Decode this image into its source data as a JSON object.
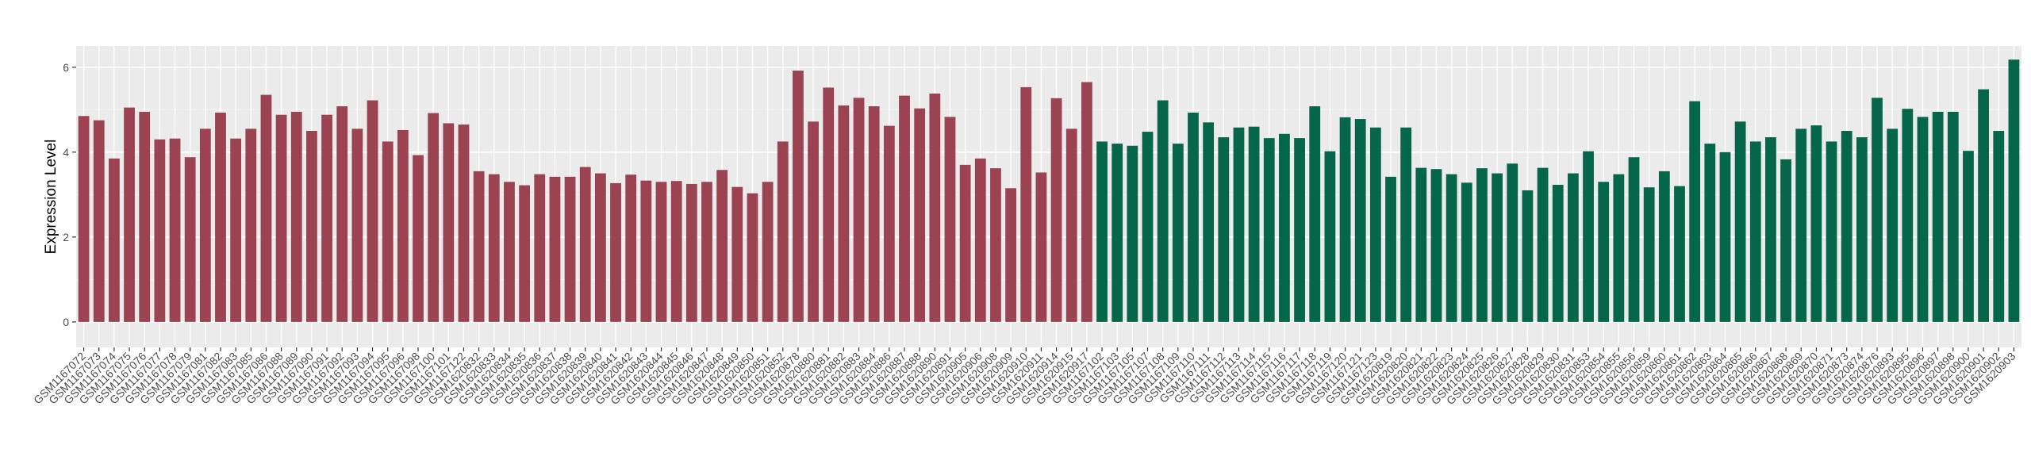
{
  "colors": {
    "panel": "#EBEBEB",
    "grid_major": "#FFFFFF",
    "grid_minor": "#F5F5F5",
    "series_1": "#9B4350",
    "series_2": "#06664A",
    "axis_text": "#4D4D4D",
    "title_text": "#000000"
  },
  "chart_data": {
    "type": "bar",
    "title": "",
    "xlabel": "",
    "ylabel": "Expression Level",
    "ylim": [
      -0.6,
      6.5
    ],
    "yticks": [
      0,
      2,
      4,
      6
    ],
    "grid": true,
    "legend": "none",
    "categories": [
      "GSM1167072",
      "GSM1167073",
      "GSM1167074",
      "GSM1167075",
      "GSM1167076",
      "GSM1167077",
      "GSM1167078",
      "GSM1167079",
      "GSM1167081",
      "GSM1167082",
      "GSM1167083",
      "GSM1167085",
      "GSM1167086",
      "GSM1167088",
      "GSM1167089",
      "GSM1167090",
      "GSM1167091",
      "GSM1167092",
      "GSM1167093",
      "GSM1167094",
      "GSM1167095",
      "GSM1167096",
      "GSM1167098",
      "GSM1167100",
      "GSM1167101",
      "GSM1167122",
      "GSM1620832",
      "GSM1620833",
      "GSM1620834",
      "GSM1620835",
      "GSM1620836",
      "GSM1620837",
      "GSM1620838",
      "GSM1620839",
      "GSM1620840",
      "GSM1620841",
      "GSM1620842",
      "GSM1620843",
      "GSM1620844",
      "GSM1620845",
      "GSM1620846",
      "GSM1620847",
      "GSM1620848",
      "GSM1620849",
      "GSM1620850",
      "GSM1620851",
      "GSM1620852",
      "GSM1620878",
      "GSM1620880",
      "GSM1620881",
      "GSM1620882",
      "GSM1620883",
      "GSM1620884",
      "GSM1620886",
      "GSM1620887",
      "GSM1620888",
      "GSM1620890",
      "GSM1620891",
      "GSM1620905",
      "GSM1620906",
      "GSM1620908",
      "GSM1620909",
      "GSM1620910",
      "GSM1620911",
      "GSM1620914",
      "GSM1620915",
      "GSM1620917",
      "GSM1167102",
      "GSM1167103",
      "GSM1167105",
      "GSM1167107",
      "GSM1167108",
      "GSM1167109",
      "GSM1167110",
      "GSM1167111",
      "GSM1167112",
      "GSM1167113",
      "GSM1167114",
      "GSM1167115",
      "GSM1167116",
      "GSM1167117",
      "GSM1167118",
      "GSM1167119",
      "GSM1167120",
      "GSM1167121",
      "GSM1167123",
      "GSM1620819",
      "GSM1620820",
      "GSM1620821",
      "GSM1620822",
      "GSM1620823",
      "GSM1620824",
      "GSM1620825",
      "GSM1620826",
      "GSM1620827",
      "GSM1620828",
      "GSM1620829",
      "GSM1620830",
      "GSM1620831",
      "GSM1620853",
      "GSM1620854",
      "GSM1620855",
      "GSM1620856",
      "GSM1620859",
      "GSM1620860",
      "GSM1620861",
      "GSM1620862",
      "GSM1620863",
      "GSM1620864",
      "GSM1620865",
      "GSM1620866",
      "GSM1620867",
      "GSM1620868",
      "GSM1620869",
      "GSM1620870",
      "GSM1620871",
      "GSM1620873",
      "GSM1620874",
      "GSM1620876",
      "GSM1620893",
      "GSM1620895",
      "GSM1620896",
      "GSM1620897",
      "GSM1620898",
      "GSM1620900",
      "GSM1620901",
      "GSM1620902",
      "GSM1620903"
    ],
    "values": [
      4.85,
      4.75,
      3.85,
      5.05,
      4.95,
      4.3,
      4.32,
      3.88,
      4.55,
      4.93,
      4.32,
      4.55,
      5.35,
      4.88,
      4.95,
      4.5,
      4.88,
      5.08,
      4.55,
      5.22,
      4.25,
      4.52,
      3.93,
      4.92,
      4.68,
      4.65,
      3.55,
      3.48,
      3.3,
      3.22,
      3.48,
      3.42,
      3.42,
      3.65,
      3.5,
      3.27,
      3.47,
      3.33,
      3.3,
      3.32,
      3.25,
      3.3,
      3.58,
      3.18,
      3.03,
      3.3,
      4.25,
      5.92,
      4.72,
      5.52,
      5.1,
      5.28,
      5.08,
      4.62,
      5.33,
      5.03,
      5.38,
      4.83,
      3.7,
      3.85,
      3.62,
      3.15,
      5.53,
      3.52,
      5.27,
      4.55,
      5.65,
      4.25,
      4.2,
      4.15,
      4.48,
      5.22,
      4.2,
      4.93,
      4.7,
      4.35,
      4.58,
      4.6,
      4.33,
      4.43,
      4.33,
      5.08,
      4.02,
      4.82,
      4.78,
      4.58,
      3.42,
      4.58,
      3.63,
      3.6,
      3.48,
      3.28,
      3.62,
      3.5,
      3.73,
      3.1,
      3.63,
      3.23,
      3.5,
      4.02,
      3.3,
      3.48,
      3.88,
      3.17,
      3.55,
      3.2,
      5.2,
      4.2,
      4.0,
      4.72,
      4.25,
      4.35,
      3.83,
      4.55,
      4.63,
      4.25,
      4.5,
      4.35,
      5.28,
      4.55,
      5.02,
      4.83,
      4.95,
      4.95,
      4.03,
      5.48,
      4.5,
      6.18
    ],
    "groups": [
      {
        "color_key": "series_1",
        "count": 67
      },
      {
        "color_key": "series_2",
        "count": 61
      }
    ]
  }
}
